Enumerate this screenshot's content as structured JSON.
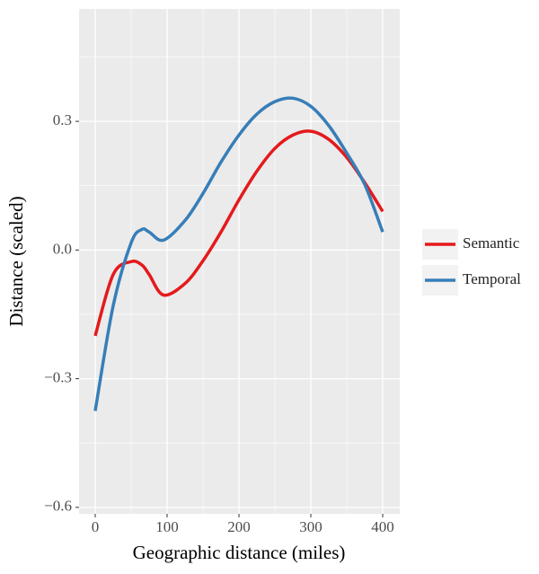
{
  "chart_data": {
    "type": "line",
    "xlabel": "Geographic distance (miles)",
    "ylabel": "Distance (scaled)",
    "x": [
      0,
      25,
      50,
      65,
      75,
      95,
      125,
      150,
      175,
      200,
      225,
      250,
      275,
      300,
      325,
      350,
      375,
      400
    ],
    "series": [
      {
        "name": "Semantic",
        "color": "#e41a1c",
        "values": [
          -0.2,
          -0.057,
          -0.027,
          -0.035,
          -0.057,
          -0.105,
          -0.078,
          -0.025,
          0.042,
          0.117,
          0.184,
          0.237,
          0.268,
          0.277,
          0.258,
          0.216,
          0.157,
          0.09
        ]
      },
      {
        "name": "Temporal",
        "color": "#377eb8",
        "values": [
          -0.375,
          -0.13,
          0.017,
          0.048,
          0.042,
          0.023,
          0.069,
          0.132,
          0.205,
          0.268,
          0.317,
          0.346,
          0.354,
          0.335,
          0.29,
          0.226,
          0.153,
          0.042
        ]
      }
    ],
    "xlim": [
      -22.5,
      423.75
    ],
    "ylim": [
      -0.615,
      0.562
    ],
    "xticks": [
      0,
      100,
      200,
      300,
      400
    ],
    "yticks": [
      {
        "value": -0.6,
        "label": "−0.6"
      },
      {
        "value": -0.3,
        "label": "−0.3"
      },
      {
        "value": 0,
        "label": "0.0"
      },
      0.3
    ],
    "xminorticks": [
      50,
      150,
      250,
      350
    ],
    "yminorticks": [
      -0.45,
      -0.15,
      0.15,
      0.45
    ],
    "grid": true,
    "legend": "right"
  }
}
